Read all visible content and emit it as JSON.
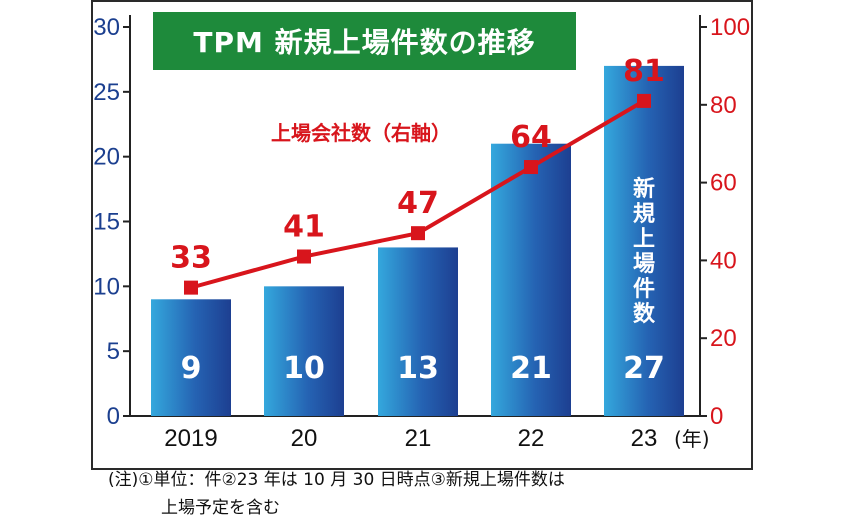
{
  "chart_data": {
    "type": "bar+line",
    "title": "TPM 新規上場件数の推移",
    "categories": [
      "2019",
      "20",
      "21",
      "22",
      "23"
    ],
    "x_unit_label": "(年)",
    "left_axis": {
      "ylim": [
        0,
        30
      ],
      "ticks": [
        "0",
        "5",
        "10",
        "15",
        "20",
        "25",
        "30"
      ],
      "color": "#1b3f8f"
    },
    "right_axis": {
      "ylim": [
        0,
        100
      ],
      "ticks": [
        "0",
        "20",
        "40",
        "60",
        "80",
        "100"
      ],
      "color": "#d8151c"
    },
    "series": [
      {
        "name": "新規上場件数",
        "kind": "bar",
        "axis": "left",
        "values": [
          9,
          10,
          13,
          21,
          27
        ],
        "labels": [
          "9",
          "10",
          "13",
          "21",
          "27"
        ]
      },
      {
        "name": "上場会社数（右軸）",
        "kind": "line",
        "axis": "right",
        "values": [
          33,
          41,
          47,
          64,
          81
        ],
        "labels": [
          "33",
          "41",
          "47",
          "64",
          "81"
        ]
      }
    ],
    "bar_vertical_label_chars": [
      "新",
      "規",
      "上",
      "場",
      "件",
      "数"
    ],
    "line_label": "上場会社数（右軸）",
    "colors": {
      "bar_dark": "#1d3f91",
      "bar_light": "#34a8dd",
      "line": "#d8151c",
      "title_bg": "#1e8a3b"
    }
  },
  "note": {
    "line1": "(注)①単位：件②23 年は 10 月 30 日時点③新規上場件数は",
    "line2": "上場予定を含む"
  }
}
